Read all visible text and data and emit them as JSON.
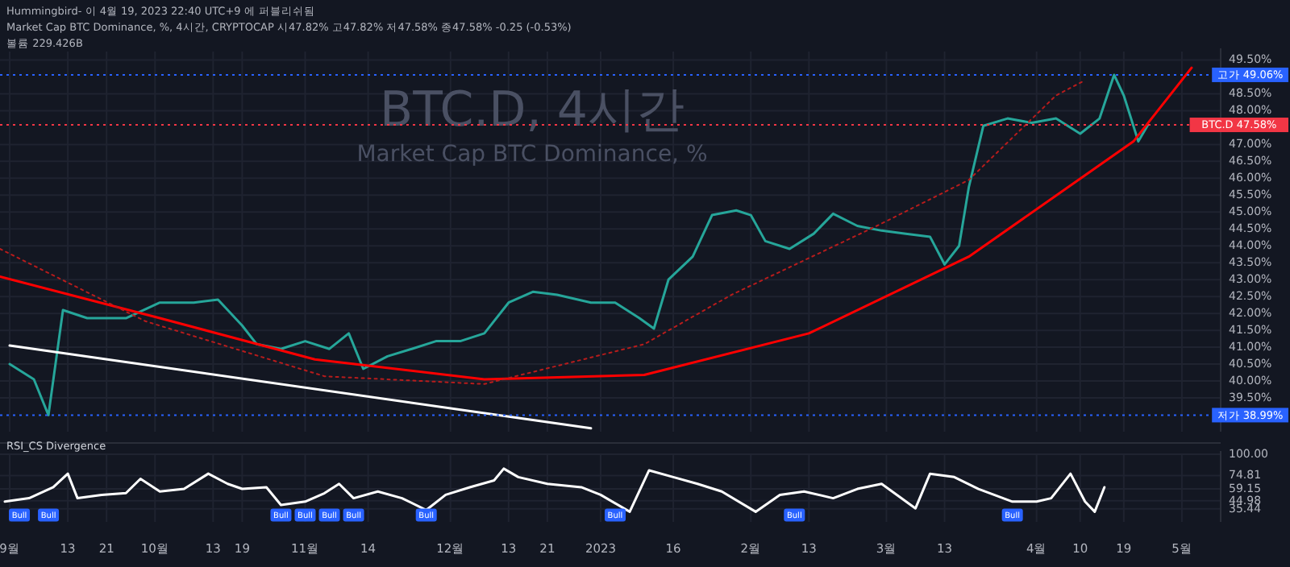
{
  "chart_data": [
    {
      "type": "line",
      "title": "BTC.D, 4시간",
      "subtitle": "Market Cap BTC Dominance, %",
      "grid": true,
      "tick_labels": "y",
      "annotations": [
        "Hummingbird- 이 4월 19, 2023 22:40 UTC+9 에 퍼블리쉬됨",
        "Market Cap BTC Dominance, %, 4시간, CRYPTOCAP  시47.82% 고47.82% 저47.58% 종47.58% -0.25 (-0.53%)",
        "볼륨 229.426B"
      ],
      "ref_lines": [
        {
          "axis": "y",
          "value": 49.06,
          "label": "고가 49.06%",
          "color": "#2962ff",
          "line_style": "dotted"
        },
        {
          "axis": "y",
          "value": 47.58,
          "label": "BTC.D 47.58%",
          "color": "#f23645",
          "line_style": "dotted"
        },
        {
          "axis": "y",
          "value": 38.99,
          "label": "저가 38.99%",
          "color": "#2962ff",
          "line_style": "dotted"
        }
      ],
      "xlim": [
        "2022-08-30",
        "2023-05-09"
      ],
      "xticks": [
        "2022-09-01",
        "2022-09-13",
        "2022-09-21",
        "2022-10-01",
        "2022-10-13",
        "2022-10-19",
        "2022-11-01",
        "2022-11-14",
        "2022-12-01",
        "2022-12-13",
        "2022-12-21",
        "2023-01-01",
        "2023-01-16",
        "2023-02-01",
        "2023-02-13",
        "2023-03-01",
        "2023-03-13",
        "2023-04-01",
        "2023-04-10",
        "2023-04-19",
        "2023-05-01"
      ],
      "ylim": [
        38.5,
        49.75
      ],
      "yticks": [
        {
          "value": 39.5,
          "label": "39.50%"
        },
        {
          "value": 40,
          "label": "40.00%"
        },
        {
          "value": 40.5,
          "label": "40.50%"
        },
        {
          "value": 41,
          "label": "41.00%"
        },
        {
          "value": 41.5,
          "label": "41.50%"
        },
        {
          "value": 42,
          "label": "42.00%"
        },
        {
          "value": 42.5,
          "label": "42.50%"
        },
        {
          "value": 43,
          "label": "43.00%"
        },
        {
          "value": 43.5,
          "label": "43.50%"
        },
        {
          "value": 44,
          "label": "44.00%"
        },
        {
          "value": 44.5,
          "label": "44.50%"
        },
        {
          "value": 45,
          "label": "45.00%"
        },
        {
          "value": 45.5,
          "label": "45.50%"
        },
        {
          "value": 46,
          "label": "46.00%"
        },
        {
          "value": 46.5,
          "label": "46.50%"
        },
        {
          "value": 47,
          "label": "47.00%"
        },
        {
          "value": 48,
          "label": "48.00%"
        },
        {
          "value": 48.5,
          "label": "48.50%"
        },
        {
          "value": 49.5,
          "label": "49.50%"
        }
      ],
      "series": [
        {
          "color": "#26a69a",
          "line_style": "solid",
          "x": [
            "2022-09-01",
            "2022-09-06",
            "2022-09-09",
            "2022-09-12",
            "2022-09-17",
            "2022-09-25",
            "2022-10-02",
            "2022-10-09",
            "2022-10-14",
            "2022-10-19",
            "2022-10-22",
            "2022-10-27",
            "2022-11-01",
            "2022-11-06",
            "2022-11-10",
            "2022-11-13",
            "2022-11-18",
            "2022-11-23",
            "2022-11-28",
            "2022-12-03",
            "2022-12-08",
            "2022-12-13",
            "2022-12-18",
            "2022-12-23",
            "2022-12-30",
            "2023-01-04",
            "2023-01-09",
            "2023-01-12",
            "2023-01-15",
            "2023-01-20",
            "2023-01-24",
            "2023-01-29",
            "2023-02-01",
            "2023-02-04",
            "2023-02-09",
            "2023-02-14",
            "2023-02-18",
            "2023-02-23",
            "2023-02-28",
            "2023-03-05",
            "2023-03-10",
            "2023-03-13",
            "2023-03-16",
            "2023-03-18",
            "2023-03-21",
            "2023-03-26",
            "2023-03-31",
            "2023-04-05",
            "2023-04-10",
            "2023-04-14",
            "2023-04-17",
            "2023-04-19",
            "2023-04-22",
            "2023-04-24"
          ],
          "values": [
            40.5,
            40.05,
            38.99,
            42.1,
            41.86,
            41.86,
            42.32,
            42.32,
            42.41,
            41.64,
            41.09,
            40.95,
            41.18,
            40.95,
            41.41,
            40.36,
            40.73,
            40.95,
            41.18,
            41.18,
            41.41,
            42.32,
            42.64,
            42.55,
            42.32,
            42.32,
            41.86,
            41.55,
            43.0,
            43.68,
            44.91,
            45.05,
            44.91,
            44.14,
            43.91,
            44.36,
            44.95,
            44.59,
            44.45,
            44.36,
            44.27,
            43.45,
            44.0,
            45.73,
            47.55,
            47.77,
            47.64,
            47.77,
            47.32,
            47.77,
            49.06,
            48.45,
            47.09,
            47.58
          ]
        },
        {
          "color": "#ff0000",
          "line_style": "solid",
          "x": [
            "2022-08-30",
            "2022-10-02",
            "2022-11-03",
            "2022-12-08",
            "2023-01-10",
            "2023-02-13",
            "2023-03-18",
            "2023-04-21",
            "2023-05-03"
          ],
          "values": [
            43.09,
            41.86,
            40.64,
            40.05,
            40.18,
            41.41,
            43.68,
            47.09,
            49.27
          ]
        },
        {
          "color": "#b71c1c",
          "line_style": "dotted",
          "x": [
            "2022-08-30",
            "2022-09-29",
            "2022-11-05",
            "2022-12-08",
            "2023-01-10",
            "2023-01-28",
            "2023-02-27",
            "2023-03-18",
            "2023-04-05",
            "2023-04-11"
          ],
          "values": [
            43.91,
            41.77,
            40.14,
            39.91,
            41.09,
            42.55,
            44.59,
            45.95,
            48.45,
            48.9
          ]
        },
        {
          "color": "#ffffff",
          "line_style": "solid",
          "x": [
            "2022-09-01",
            "2022-12-30"
          ],
          "values": [
            41.05,
            38.6
          ]
        }
      ]
    },
    {
      "type": "line",
      "title": "RSI_CS Divergence",
      "grid": true,
      "xlim": [
        "2022-08-30",
        "2023-05-09"
      ],
      "xticks": [
        {
          "value": "2022-09-01",
          "label": "9월"
        },
        {
          "value": "2022-09-13",
          "label": "13"
        },
        {
          "value": "2022-09-21",
          "label": "21"
        },
        {
          "value": "2022-10-01",
          "label": "10월"
        },
        {
          "value": "2022-10-13",
          "label": "13"
        },
        {
          "value": "2022-10-19",
          "label": "19"
        },
        {
          "value": "2022-11-01",
          "label": "11월"
        },
        {
          "value": "2022-11-14",
          "label": "14"
        },
        {
          "value": "2022-12-01",
          "label": "12월"
        },
        {
          "value": "2022-12-13",
          "label": "13"
        },
        {
          "value": "2022-12-21",
          "label": "21"
        },
        {
          "value": "2023-01-01",
          "label": "2023"
        },
        {
          "value": "2023-01-16",
          "label": "16"
        },
        {
          "value": "2023-02-01",
          "label": "2월"
        },
        {
          "value": "2023-02-13",
          "label": "13"
        },
        {
          "value": "2023-03-01",
          "label": "3월"
        },
        {
          "value": "2023-03-13",
          "label": "13"
        },
        {
          "value": "2023-04-01",
          "label": "4월"
        },
        {
          "value": "2023-04-10",
          "label": "10"
        },
        {
          "value": "2023-04-19",
          "label": "19"
        },
        {
          "value": "2023-05-01",
          "label": "5월"
        }
      ],
      "ylim": [
        20,
        100
      ],
      "yticks": [
        {
          "value": 100,
          "label": "100.00"
        },
        {
          "value": 74.81,
          "label": "74.81"
        },
        {
          "value": 59.15,
          "label": "59.15"
        },
        {
          "value": 44.98,
          "label": "44.98"
        },
        {
          "value": 35.44,
          "label": "35.44"
        }
      ],
      "annotations": [
        {
          "text": "Bull",
          "x": "2022-09-03",
          "y": 28
        },
        {
          "text": "Bull",
          "x": "2022-09-09",
          "y": 28
        },
        {
          "text": "Bull",
          "x": "2022-10-27",
          "y": 28
        },
        {
          "text": "Bull",
          "x": "2022-11-01",
          "y": 28
        },
        {
          "text": "Bull",
          "x": "2022-11-06",
          "y": 28
        },
        {
          "text": "Bull",
          "x": "2022-11-11",
          "y": 28
        },
        {
          "text": "Bull",
          "x": "2022-11-26",
          "y": 28
        },
        {
          "text": "Bull",
          "x": "2023-01-04",
          "y": 28
        },
        {
          "text": "Bull",
          "x": "2023-02-10",
          "y": 28
        },
        {
          "text": "Bull",
          "x": "2023-03-27",
          "y": 28
        }
      ],
      "series": [
        {
          "color": "#ffffff",
          "line_style": "solid",
          "x": [
            "2022-08-31",
            "2022-09-05",
            "2022-09-10",
            "2022-09-13",
            "2022-09-15",
            "2022-09-20",
            "2022-09-25",
            "2022-09-28",
            "2022-10-02",
            "2022-10-07",
            "2022-10-12",
            "2022-10-16",
            "2022-10-19",
            "2022-10-24",
            "2022-10-27",
            "2022-11-01",
            "2022-11-05",
            "2022-11-08",
            "2022-11-11",
            "2022-11-16",
            "2022-11-21",
            "2022-11-26",
            "2022-11-30",
            "2022-12-05",
            "2022-12-10",
            "2022-12-12",
            "2022-12-15",
            "2022-12-21",
            "2022-12-28",
            "2023-01-01",
            "2023-01-07",
            "2023-01-11",
            "2023-01-16",
            "2023-01-21",
            "2023-01-26",
            "2023-02-02",
            "2023-02-07",
            "2023-02-12",
            "2023-02-18",
            "2023-02-23",
            "2023-02-28",
            "2023-03-07",
            "2023-03-10",
            "2023-03-15",
            "2023-03-20",
            "2023-03-27",
            "2023-04-01",
            "2023-04-04",
            "2023-04-08",
            "2023-04-11",
            "2023-04-13",
            "2023-04-15"
          ],
          "values": [
            44,
            48,
            61,
            77,
            48,
            52,
            54,
            71,
            56,
            59,
            77,
            65,
            59,
            61,
            40,
            44,
            54,
            65,
            48,
            56,
            48,
            34,
            52,
            61,
            69,
            83,
            73,
            65,
            61,
            52,
            32,
            81,
            73,
            65,
            56,
            32,
            52,
            56,
            48,
            59,
            65,
            36,
            77,
            73,
            59,
            44,
            44,
            48,
            77,
            44,
            32,
            61
          ]
        }
      ]
    }
  ]
}
